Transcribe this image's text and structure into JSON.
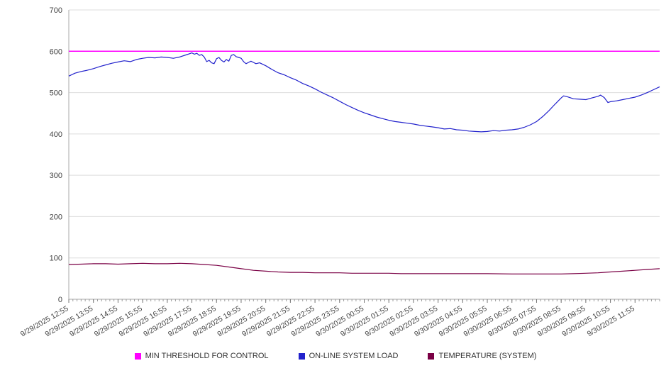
{
  "chart_data": {
    "type": "line",
    "title": "",
    "xlabel": "",
    "ylabel": "",
    "xlim": [
      0,
      24
    ],
    "ylim": [
      0,
      700
    ],
    "ytick_step": 100,
    "x_unit": "hours since 9/29/2025 12:55",
    "grid": true,
    "legend_position": "bottom",
    "x_labels": [
      "9/29/2025 12:55",
      "9/29/2025 13:55",
      "9/29/2025 14:55",
      "9/29/2025 15:55",
      "9/29/2025 16:55",
      "9/29/2025 17:55",
      "9/29/2025 18:55",
      "9/29/2025 19:55",
      "9/29/2025 20:55",
      "9/29/2025 21:55",
      "9/29/2025 22:55",
      "9/29/2025 23:55",
      "9/30/2025 00:55",
      "9/30/2025 01:55",
      "9/30/2025 02:55",
      "9/30/2025 03:55",
      "9/30/2025 04:55",
      "9/30/2025 05:55",
      "9/30/2025 06:55",
      "9/30/2025 07:55",
      "9/30/2025 08:55",
      "9/30/2025 09:55",
      "9/30/2025 10:55",
      "9/30/2025 11:55"
    ],
    "series": [
      {
        "name": "MIN THRESHOLD FOR CONTROL",
        "color": "#FF00FF",
        "width": 1.5,
        "points": [
          [
            0,
            600
          ],
          [
            24,
            600
          ]
        ]
      },
      {
        "name": "ON-LINE SYSTEM LOAD",
        "color": "#2222CC",
        "width": 1.2,
        "points": [
          [
            0,
            540
          ],
          [
            0.25,
            547
          ],
          [
            0.5,
            551
          ],
          [
            0.75,
            554
          ],
          [
            1,
            558
          ],
          [
            1.25,
            563
          ],
          [
            1.5,
            567
          ],
          [
            1.75,
            571
          ],
          [
            2,
            574
          ],
          [
            2.25,
            577
          ],
          [
            2.5,
            575
          ],
          [
            2.75,
            580
          ],
          [
            3,
            583
          ],
          [
            3.25,
            585
          ],
          [
            3.5,
            584
          ],
          [
            3.75,
            586
          ],
          [
            4,
            585
          ],
          [
            4.25,
            583
          ],
          [
            4.5,
            586
          ],
          [
            4.75,
            591
          ],
          [
            4.9,
            594
          ],
          [
            5,
            596
          ],
          [
            5.1,
            593
          ],
          [
            5.2,
            595
          ],
          [
            5.3,
            590
          ],
          [
            5.4,
            592
          ],
          [
            5.5,
            586
          ],
          [
            5.6,
            575
          ],
          [
            5.7,
            578
          ],
          [
            5.8,
            572
          ],
          [
            5.9,
            570
          ],
          [
            6,
            582
          ],
          [
            6.1,
            585
          ],
          [
            6.2,
            578
          ],
          [
            6.3,
            574
          ],
          [
            6.4,
            580
          ],
          [
            6.5,
            576
          ],
          [
            6.6,
            590
          ],
          [
            6.7,
            592
          ],
          [
            6.8,
            587
          ],
          [
            6.9,
            585
          ],
          [
            7,
            583
          ],
          [
            7.1,
            575
          ],
          [
            7.2,
            570
          ],
          [
            7.3,
            573
          ],
          [
            7.4,
            576
          ],
          [
            7.5,
            573
          ],
          [
            7.6,
            570
          ],
          [
            7.75,
            572
          ],
          [
            8,
            565
          ],
          [
            8.25,
            556
          ],
          [
            8.5,
            548
          ],
          [
            8.75,
            543
          ],
          [
            9,
            536
          ],
          [
            9.25,
            530
          ],
          [
            9.5,
            522
          ],
          [
            9.75,
            516
          ],
          [
            10,
            509
          ],
          [
            10.25,
            501
          ],
          [
            10.5,
            494
          ],
          [
            10.75,
            487
          ],
          [
            11,
            479
          ],
          [
            11.25,
            471
          ],
          [
            11.5,
            464
          ],
          [
            11.75,
            457
          ],
          [
            12,
            451
          ],
          [
            12.25,
            446
          ],
          [
            12.5,
            441
          ],
          [
            12.75,
            437
          ],
          [
            13,
            433
          ],
          [
            13.25,
            430
          ],
          [
            13.5,
            428
          ],
          [
            13.75,
            426
          ],
          [
            14,
            424
          ],
          [
            14.25,
            421
          ],
          [
            14.5,
            419
          ],
          [
            14.75,
            417
          ],
          [
            15,
            415
          ],
          [
            15.25,
            412
          ],
          [
            15.5,
            413
          ],
          [
            15.75,
            410
          ],
          [
            16,
            409
          ],
          [
            16.25,
            407
          ],
          [
            16.5,
            406
          ],
          [
            16.75,
            405
          ],
          [
            17,
            406
          ],
          [
            17.25,
            408
          ],
          [
            17.5,
            407
          ],
          [
            17.75,
            409
          ],
          [
            18,
            410
          ],
          [
            18.25,
            412
          ],
          [
            18.5,
            416
          ],
          [
            18.75,
            422
          ],
          [
            19,
            430
          ],
          [
            19.25,
            442
          ],
          [
            19.5,
            456
          ],
          [
            19.75,
            472
          ],
          [
            20,
            487
          ],
          [
            20.1,
            492
          ],
          [
            20.25,
            490
          ],
          [
            20.5,
            485
          ],
          [
            20.75,
            484
          ],
          [
            21,
            483
          ],
          [
            21.25,
            487
          ],
          [
            21.5,
            491
          ],
          [
            21.6,
            494
          ],
          [
            21.75,
            488
          ],
          [
            21.9,
            476
          ],
          [
            22,
            478
          ],
          [
            22.25,
            480
          ],
          [
            22.5,
            483
          ],
          [
            22.75,
            486
          ],
          [
            23,
            489
          ],
          [
            23.25,
            494
          ],
          [
            23.5,
            500
          ],
          [
            23.75,
            507
          ],
          [
            24,
            514
          ]
        ]
      },
      {
        "name": "TEMPERATURE (SYSTEM)",
        "color": "#7A0045",
        "width": 1.2,
        "points": [
          [
            0,
            84
          ],
          [
            0.5,
            85
          ],
          [
            1,
            86
          ],
          [
            1.5,
            86
          ],
          [
            2,
            85
          ],
          [
            2.5,
            86
          ],
          [
            3,
            87
          ],
          [
            3.5,
            86
          ],
          [
            4,
            86
          ],
          [
            4.5,
            87
          ],
          [
            5,
            86
          ],
          [
            5.5,
            84
          ],
          [
            6,
            82
          ],
          [
            6.5,
            78
          ],
          [
            7,
            74
          ],
          [
            7.5,
            70
          ],
          [
            8,
            68
          ],
          [
            8.5,
            66
          ],
          [
            9,
            65
          ],
          [
            9.5,
            65
          ],
          [
            10,
            64
          ],
          [
            10.5,
            64
          ],
          [
            11,
            64
          ],
          [
            11.5,
            63
          ],
          [
            12,
            63
          ],
          [
            13,
            63
          ],
          [
            13.5,
            62
          ],
          [
            14,
            62
          ],
          [
            15,
            62
          ],
          [
            16,
            62
          ],
          [
            17,
            62
          ],
          [
            18,
            61
          ],
          [
            19,
            61
          ],
          [
            20,
            61
          ],
          [
            20.5,
            62
          ],
          [
            21,
            63
          ],
          [
            21.5,
            64
          ],
          [
            22,
            66
          ],
          [
            22.5,
            68
          ],
          [
            23,
            70
          ],
          [
            23.5,
            72
          ],
          [
            24,
            74
          ]
        ]
      }
    ]
  }
}
